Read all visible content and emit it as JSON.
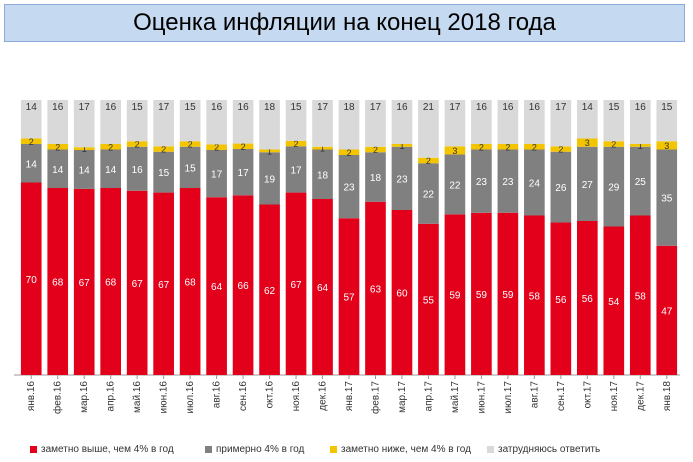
{
  "title": "Оценка инфляции на конец 2018 года",
  "chart_data": {
    "type": "bar",
    "stacked": true,
    "normalized": true,
    "categories": [
      "янв.16",
      "фев.16",
      "мар.16",
      "апр.16",
      "май.16",
      "июн.16",
      "июл.16",
      "авг.16",
      "сен.16",
      "окт.16",
      "ноя.16",
      "дек.16",
      "янв.17",
      "фев.17",
      "мар.17",
      "апр.17",
      "май.17",
      "июн.17",
      "июл.17",
      "авг.17",
      "сен.17",
      "окт.17",
      "ноя.17",
      "дек.17",
      "янв.18"
    ],
    "series": [
      {
        "name": "заметно выше, чем 4% в год",
        "color": "#e2001a",
        "values": [
          70,
          68,
          67,
          68,
          67,
          67,
          68,
          64,
          66,
          62,
          67,
          64,
          57,
          63,
          60,
          55,
          59,
          59,
          59,
          58,
          56,
          56,
          54,
          58,
          47
        ]
      },
      {
        "name": "примерно 4% в год",
        "color": "#808080",
        "values": [
          14,
          14,
          14,
          14,
          16,
          15,
          15,
          17,
          17,
          19,
          17,
          18,
          23,
          18,
          23,
          22,
          22,
          23,
          23,
          24,
          26,
          27,
          29,
          25,
          35
        ]
      },
      {
        "name": "заметно ниже, чем 4% в год",
        "color": "#f2c500",
        "values": [
          2,
          2,
          1,
          2,
          2,
          2,
          2,
          2,
          2,
          1,
          2,
          1,
          2,
          2,
          1,
          2,
          3,
          2,
          2,
          2,
          2,
          3,
          2,
          1,
          3
        ]
      },
      {
        "name": "затрудняюсь ответить",
        "color": "#d9d9d9",
        "values": [
          14,
          16,
          17,
          16,
          15,
          17,
          15,
          16,
          16,
          18,
          15,
          17,
          18,
          17,
          16,
          21,
          17,
          16,
          16,
          16,
          17,
          14,
          15,
          16,
          15
        ]
      }
    ],
    "legend_position": "bottom",
    "grid": false
  }
}
